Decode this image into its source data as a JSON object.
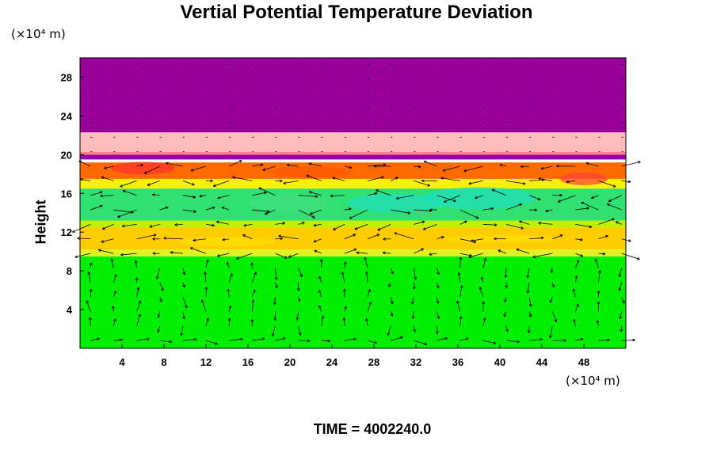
{
  "title": "Vertial Potential Temperature Deviation",
  "y_unit": "(×10⁴ m)",
  "x_unit": "(×10⁴ m)",
  "time_label": "TIME = 4002240.0",
  "chart_data": {
    "type": "heatmap",
    "title": "Vertial Potential Temperature Deviation",
    "ylabel": "Height",
    "xlabel": "",
    "xlim": [
      0,
      52
    ],
    "ylim": [
      0,
      30
    ],
    "x_ticks": [
      4,
      8,
      12,
      16,
      20,
      24,
      28,
      32,
      36,
      40,
      44,
      48
    ],
    "y_ticks": [
      4,
      8,
      12,
      16,
      20,
      24,
      28
    ],
    "overlay": "wind vector arrows",
    "layers": [
      {
        "from": 0,
        "to": 9.5,
        "color": "#00ee00"
      },
      {
        "from": 9.5,
        "to": 10.2,
        "color": "#e0f020"
      },
      {
        "from": 10.2,
        "to": 12.5,
        "color": "#ffcc00"
      },
      {
        "from": 12.5,
        "to": 13.2,
        "color": "#c0f000"
      },
      {
        "from": 13.2,
        "to": 16.5,
        "color": "#30e070"
      },
      {
        "from": 16.5,
        "to": 17.5,
        "color": "#fff000"
      },
      {
        "from": 17.5,
        "to": 19.2,
        "color": "#ff6a00"
      },
      {
        "from": 19.2,
        "to": 19.5,
        "color": "#ffffff"
      },
      {
        "from": 19.5,
        "to": 20.0,
        "color": "#9900aa"
      },
      {
        "from": 20.0,
        "to": 20.3,
        "color": "#ff8080"
      },
      {
        "from": 20.3,
        "to": 22.3,
        "color": "#ffbcbc"
      },
      {
        "from": 22.3,
        "to": 30,
        "color": "#990099"
      }
    ]
  }
}
